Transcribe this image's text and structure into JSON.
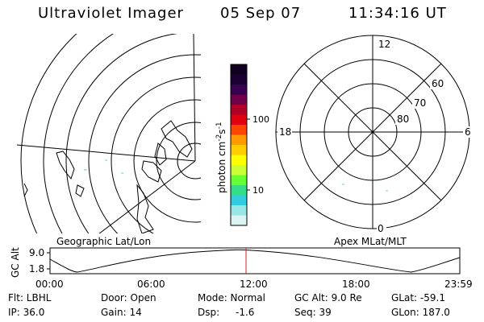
{
  "header": {
    "instrument": "Ultraviolet Imager",
    "date": "05 Sep 07",
    "time": "11:34:16 UT"
  },
  "geo_panel": {
    "caption": "Geographic Lat/Lon"
  },
  "apex_panel": {
    "caption": "Apex MLat/MLT",
    "mlt_labels": {
      "top": "12",
      "left": "18",
      "right": "6",
      "bottom": "0"
    },
    "lat_labels": [
      "60",
      "70",
      "80"
    ]
  },
  "colorbar": {
    "unit_label": "photon cm-2s-1",
    "unit_main": "photon cm",
    "unit_exp1": "-2",
    "unit_s": "s",
    "unit_exp2": "-1",
    "tick_100": "100",
    "tick_10": "10",
    "colors": [
      "#110022",
      "#1a0033",
      "#3a0050",
      "#70004a",
      "#b00028",
      "#e00010",
      "#ff4400",
      "#ff9900",
      "#ffcc00",
      "#ffff00",
      "#ccff33",
      "#66ff33",
      "#33dd88",
      "#33ccdd",
      "#99e6e6",
      "#ddf2f2"
    ]
  },
  "altitude_plot": {
    "ylabel": "GC Alt",
    "ytick_top": "9.0",
    "ytick_bottom": "1.8",
    "xticks": [
      "00:00",
      "06:00",
      "12:00",
      "18:00",
      "23:59"
    ]
  },
  "info": {
    "flt": "Flt: LBHL",
    "door": "Door: Open",
    "mode": "Mode: Normal",
    "gc_alt": "GC Alt: 9.0 Re",
    "glat": "GLat: -59.1",
    "ip": "IP: 36.0",
    "gain": "Gain: 14",
    "dsp_label": "Dsp:",
    "dsp_value": "-1.6",
    "seq": "Seq: 39",
    "glon": "GLon: 187.0"
  }
}
